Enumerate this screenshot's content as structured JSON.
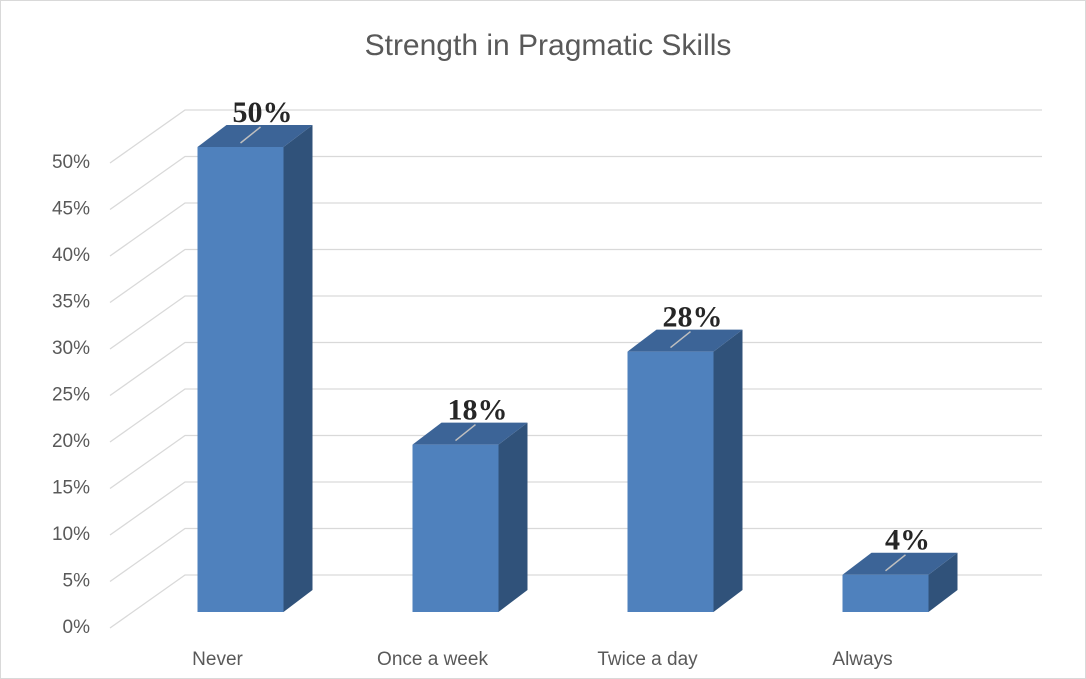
{
  "chart_data": {
    "type": "bar3d",
    "title": "Strength in Pragmatic Skills",
    "categories": [
      "Never",
      "Once a week",
      "Twice a day",
      "Always"
    ],
    "values": [
      50,
      18,
      28,
      4
    ],
    "value_labels": [
      "50%",
      "18%",
      "28%",
      "4%"
    ],
    "color": "#4f81bd",
    "ylim": [
      0,
      50
    ],
    "yticks": [
      {
        "value": 0,
        "label": "0%"
      },
      {
        "value": 5,
        "label": "5%"
      },
      {
        "value": 10,
        "label": "10%"
      },
      {
        "value": 15,
        "label": "15%"
      },
      {
        "value": 20,
        "label": "20%"
      },
      {
        "value": 25,
        "label": "25%"
      },
      {
        "value": 30,
        "label": "30%"
      },
      {
        "value": 35,
        "label": "35%"
      },
      {
        "value": 40,
        "label": "40%"
      },
      {
        "value": 45,
        "label": "45%"
      },
      {
        "value": 50,
        "label": "50%"
      }
    ],
    "grid": true
  }
}
